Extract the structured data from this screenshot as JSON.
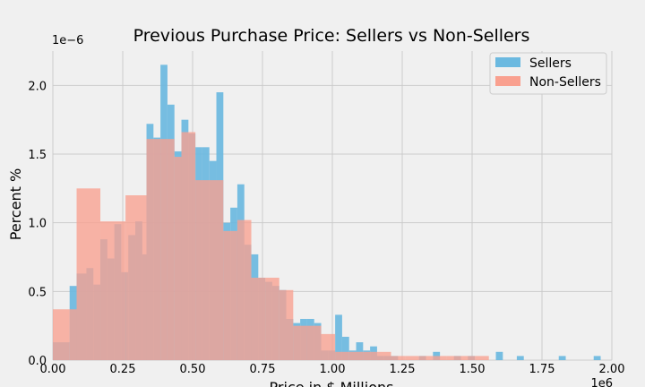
{
  "chart_data": {
    "type": "histogram",
    "title": "Previous Purchase Price: Sellers vs Non-Sellers",
    "xlabel": "Price in $ Millions",
    "ylabel": "Percent %",
    "x_scale_label": "1e6",
    "y_scale_label": "1e−6",
    "xlim": [
      0,
      2.0
    ],
    "ylim": [
      0,
      2.25
    ],
    "x_ticks": [
      0.0,
      0.25,
      0.5,
      0.75,
      1.0,
      1.25,
      1.5,
      1.75,
      2.0
    ],
    "x_tick_labels": [
      "0.00",
      "0.25",
      "0.50",
      "0.75",
      "1.00",
      "1.25",
      "1.50",
      "1.75",
      "2.00"
    ],
    "y_ticks": [
      0.0,
      0.5,
      1.0,
      1.5,
      2.0
    ],
    "y_tick_labels": [
      "0.0",
      "0.5",
      "1.0",
      "1.5",
      "2.0"
    ],
    "grid": true,
    "legend_position": "top-right",
    "series": [
      {
        "name": "Sellers",
        "color": "#6bb9e0",
        "bins": [
          [
            0.0,
            0.06,
            0.13
          ],
          [
            0.06,
            0.085,
            0.54
          ],
          [
            0.085,
            0.12,
            0.63
          ],
          [
            0.12,
            0.145,
            0.67
          ],
          [
            0.145,
            0.17,
            0.55
          ],
          [
            0.17,
            0.195,
            0.88
          ],
          [
            0.195,
            0.22,
            0.74
          ],
          [
            0.22,
            0.245,
            0.99
          ],
          [
            0.245,
            0.27,
            0.64
          ],
          [
            0.27,
            0.295,
            0.91
          ],
          [
            0.295,
            0.32,
            1.01
          ],
          [
            0.32,
            0.335,
            0.77
          ],
          [
            0.335,
            0.36,
            1.72
          ],
          [
            0.36,
            0.385,
            1.62
          ],
          [
            0.385,
            0.41,
            2.15
          ],
          [
            0.41,
            0.435,
            1.86
          ],
          [
            0.435,
            0.46,
            1.52
          ],
          [
            0.46,
            0.485,
            1.75
          ],
          [
            0.485,
            0.51,
            1.65
          ],
          [
            0.51,
            0.535,
            1.55
          ],
          [
            0.535,
            0.56,
            1.55
          ],
          [
            0.56,
            0.585,
            1.45
          ],
          [
            0.585,
            0.61,
            1.95
          ],
          [
            0.61,
            0.635,
            1.0
          ],
          [
            0.635,
            0.66,
            1.11
          ],
          [
            0.66,
            0.685,
            1.28
          ],
          [
            0.685,
            0.71,
            0.84
          ],
          [
            0.71,
            0.735,
            0.77
          ],
          [
            0.735,
            0.76,
            0.6
          ],
          [
            0.76,
            0.785,
            0.57
          ],
          [
            0.785,
            0.81,
            0.54
          ],
          [
            0.81,
            0.835,
            0.51
          ],
          [
            0.835,
            0.86,
            0.3
          ],
          [
            0.86,
            0.885,
            0.27
          ],
          [
            0.885,
            0.91,
            0.3
          ],
          [
            0.91,
            0.935,
            0.3
          ],
          [
            0.935,
            0.96,
            0.27
          ],
          [
            0.96,
            0.985,
            0.07
          ],
          [
            0.985,
            1.01,
            0.07
          ],
          [
            1.01,
            1.035,
            0.33
          ],
          [
            1.035,
            1.06,
            0.17
          ],
          [
            1.06,
            1.085,
            0.07
          ],
          [
            1.085,
            1.11,
            0.13
          ],
          [
            1.11,
            1.135,
            0.07
          ],
          [
            1.135,
            1.16,
            0.1
          ],
          [
            1.16,
            1.185,
            0.03
          ],
          [
            1.185,
            1.21,
            0.03
          ],
          [
            1.21,
            1.235,
            0.03
          ],
          [
            1.31,
            1.335,
            0.03
          ],
          [
            1.36,
            1.385,
            0.06
          ],
          [
            1.435,
            1.46,
            0.03
          ],
          [
            1.485,
            1.51,
            0.03
          ],
          [
            1.585,
            1.61,
            0.06
          ],
          [
            1.66,
            1.685,
            0.03
          ],
          [
            1.81,
            1.835,
            0.03
          ],
          [
            1.935,
            1.96,
            0.03
          ]
        ]
      },
      {
        "name": "Non-Sellers",
        "color": "#f9a08f",
        "bins": [
          [
            0.0,
            0.06,
            0.37
          ],
          [
            0.06,
            0.085,
            0.37
          ],
          [
            0.085,
            0.17,
            1.25
          ],
          [
            0.17,
            0.26,
            1.01
          ],
          [
            0.26,
            0.335,
            1.2
          ],
          [
            0.335,
            0.385,
            1.61
          ],
          [
            0.385,
            0.41,
            1.61
          ],
          [
            0.41,
            0.435,
            1.61
          ],
          [
            0.435,
            0.46,
            1.48
          ],
          [
            0.46,
            0.51,
            1.66
          ],
          [
            0.51,
            0.61,
            1.31
          ],
          [
            0.61,
            0.66,
            0.94
          ],
          [
            0.66,
            0.71,
            1.02
          ],
          [
            0.71,
            0.76,
            0.6
          ],
          [
            0.76,
            0.81,
            0.6
          ],
          [
            0.81,
            0.86,
            0.51
          ],
          [
            0.86,
            0.91,
            0.25
          ],
          [
            0.91,
            0.96,
            0.25
          ],
          [
            0.96,
            1.01,
            0.19
          ],
          [
            1.01,
            1.06,
            0.06
          ],
          [
            1.06,
            1.11,
            0.06
          ],
          [
            1.11,
            1.16,
            0.06
          ],
          [
            1.16,
            1.21,
            0.06
          ],
          [
            1.21,
            1.26,
            0.03
          ],
          [
            1.26,
            1.31,
            0.03
          ],
          [
            1.31,
            1.36,
            0.03
          ],
          [
            1.36,
            1.41,
            0.03
          ],
          [
            1.41,
            1.46,
            0.03
          ],
          [
            1.46,
            1.51,
            0.03
          ],
          [
            1.51,
            1.56,
            0.03
          ]
        ]
      }
    ]
  }
}
